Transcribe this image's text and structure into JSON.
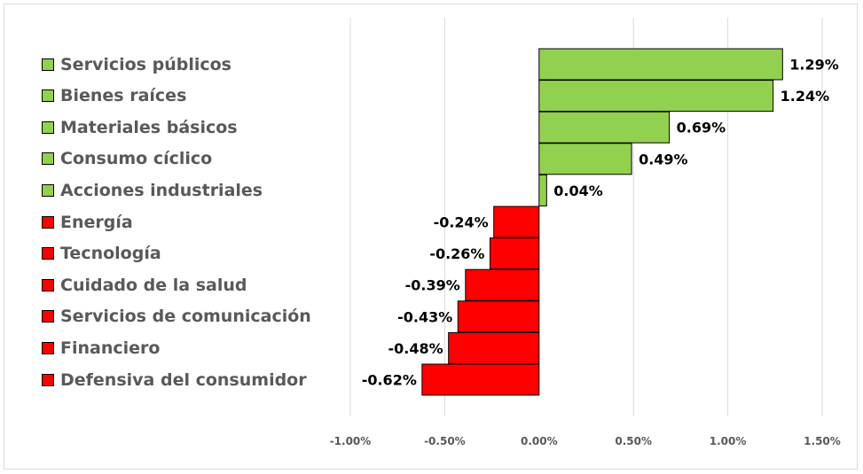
{
  "chart_data": {
    "type": "bar",
    "orientation": "horizontal",
    "categories": [
      "Servicios públicos",
      "Bienes raíces",
      "Materiales básicos",
      "Consumo cíclico",
      "Acciones industriales",
      "Energía",
      "Tecnología",
      "Cuidado de la salud",
      "Servicios de comunicación",
      "Financiero",
      "Defensiva del consumidor"
    ],
    "values": [
      1.29,
      1.24,
      0.69,
      0.49,
      0.04,
      -0.24,
      -0.26,
      -0.39,
      -0.43,
      -0.48,
      -0.62
    ],
    "value_labels": [
      "1.29%",
      "1.24%",
      "0.69%",
      "0.49%",
      "0.04%",
      "-0.24%",
      "-0.26%",
      "-0.39%",
      "-0.43%",
      "-0.48%",
      "-0.62%"
    ],
    "xlim": [
      -1.0,
      1.5
    ],
    "xticks": [
      -1.0,
      -0.5,
      0.0,
      0.5,
      1.0,
      1.5
    ],
    "xtick_labels": [
      "-1.00%",
      "-0.50%",
      "0.00%",
      "0.50%",
      "1.00%",
      "1.50%"
    ],
    "xlabel": "",
    "ylabel": "",
    "title": "",
    "grid": "vertical",
    "legend_position": "left",
    "colors": {
      "positive": "#92d050",
      "negative": "#ff0000",
      "outline": "#000000",
      "grid": "#d9d9d9"
    }
  }
}
